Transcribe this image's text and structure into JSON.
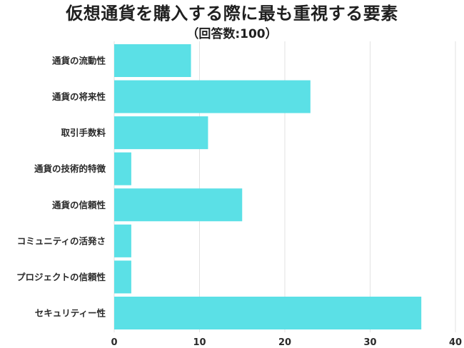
{
  "title": "仮想通貨を購入する際に最も重視する要素",
  "subtitle": "（回答数:100）",
  "colors": {
    "bar": "#5be0e6",
    "grid": "#e2e2e2",
    "text": "#2a2a2a"
  },
  "chart_data": {
    "type": "bar",
    "orientation": "horizontal",
    "categories": [
      "通貨の流動性",
      "通貨の将来性",
      "取引手数料",
      "通貨の技術的特徴",
      "通貨の信頼性",
      "コミュニティの活発さ",
      "プロジェクトの信頼性",
      "セキュリティー性"
    ],
    "values": [
      9,
      23,
      11,
      2,
      15,
      2,
      2,
      36
    ],
    "xlim": [
      0,
      40
    ],
    "xticks": [
      "0",
      "10",
      "20",
      "30",
      "40"
    ],
    "grid": "vertical",
    "legend": "none"
  }
}
